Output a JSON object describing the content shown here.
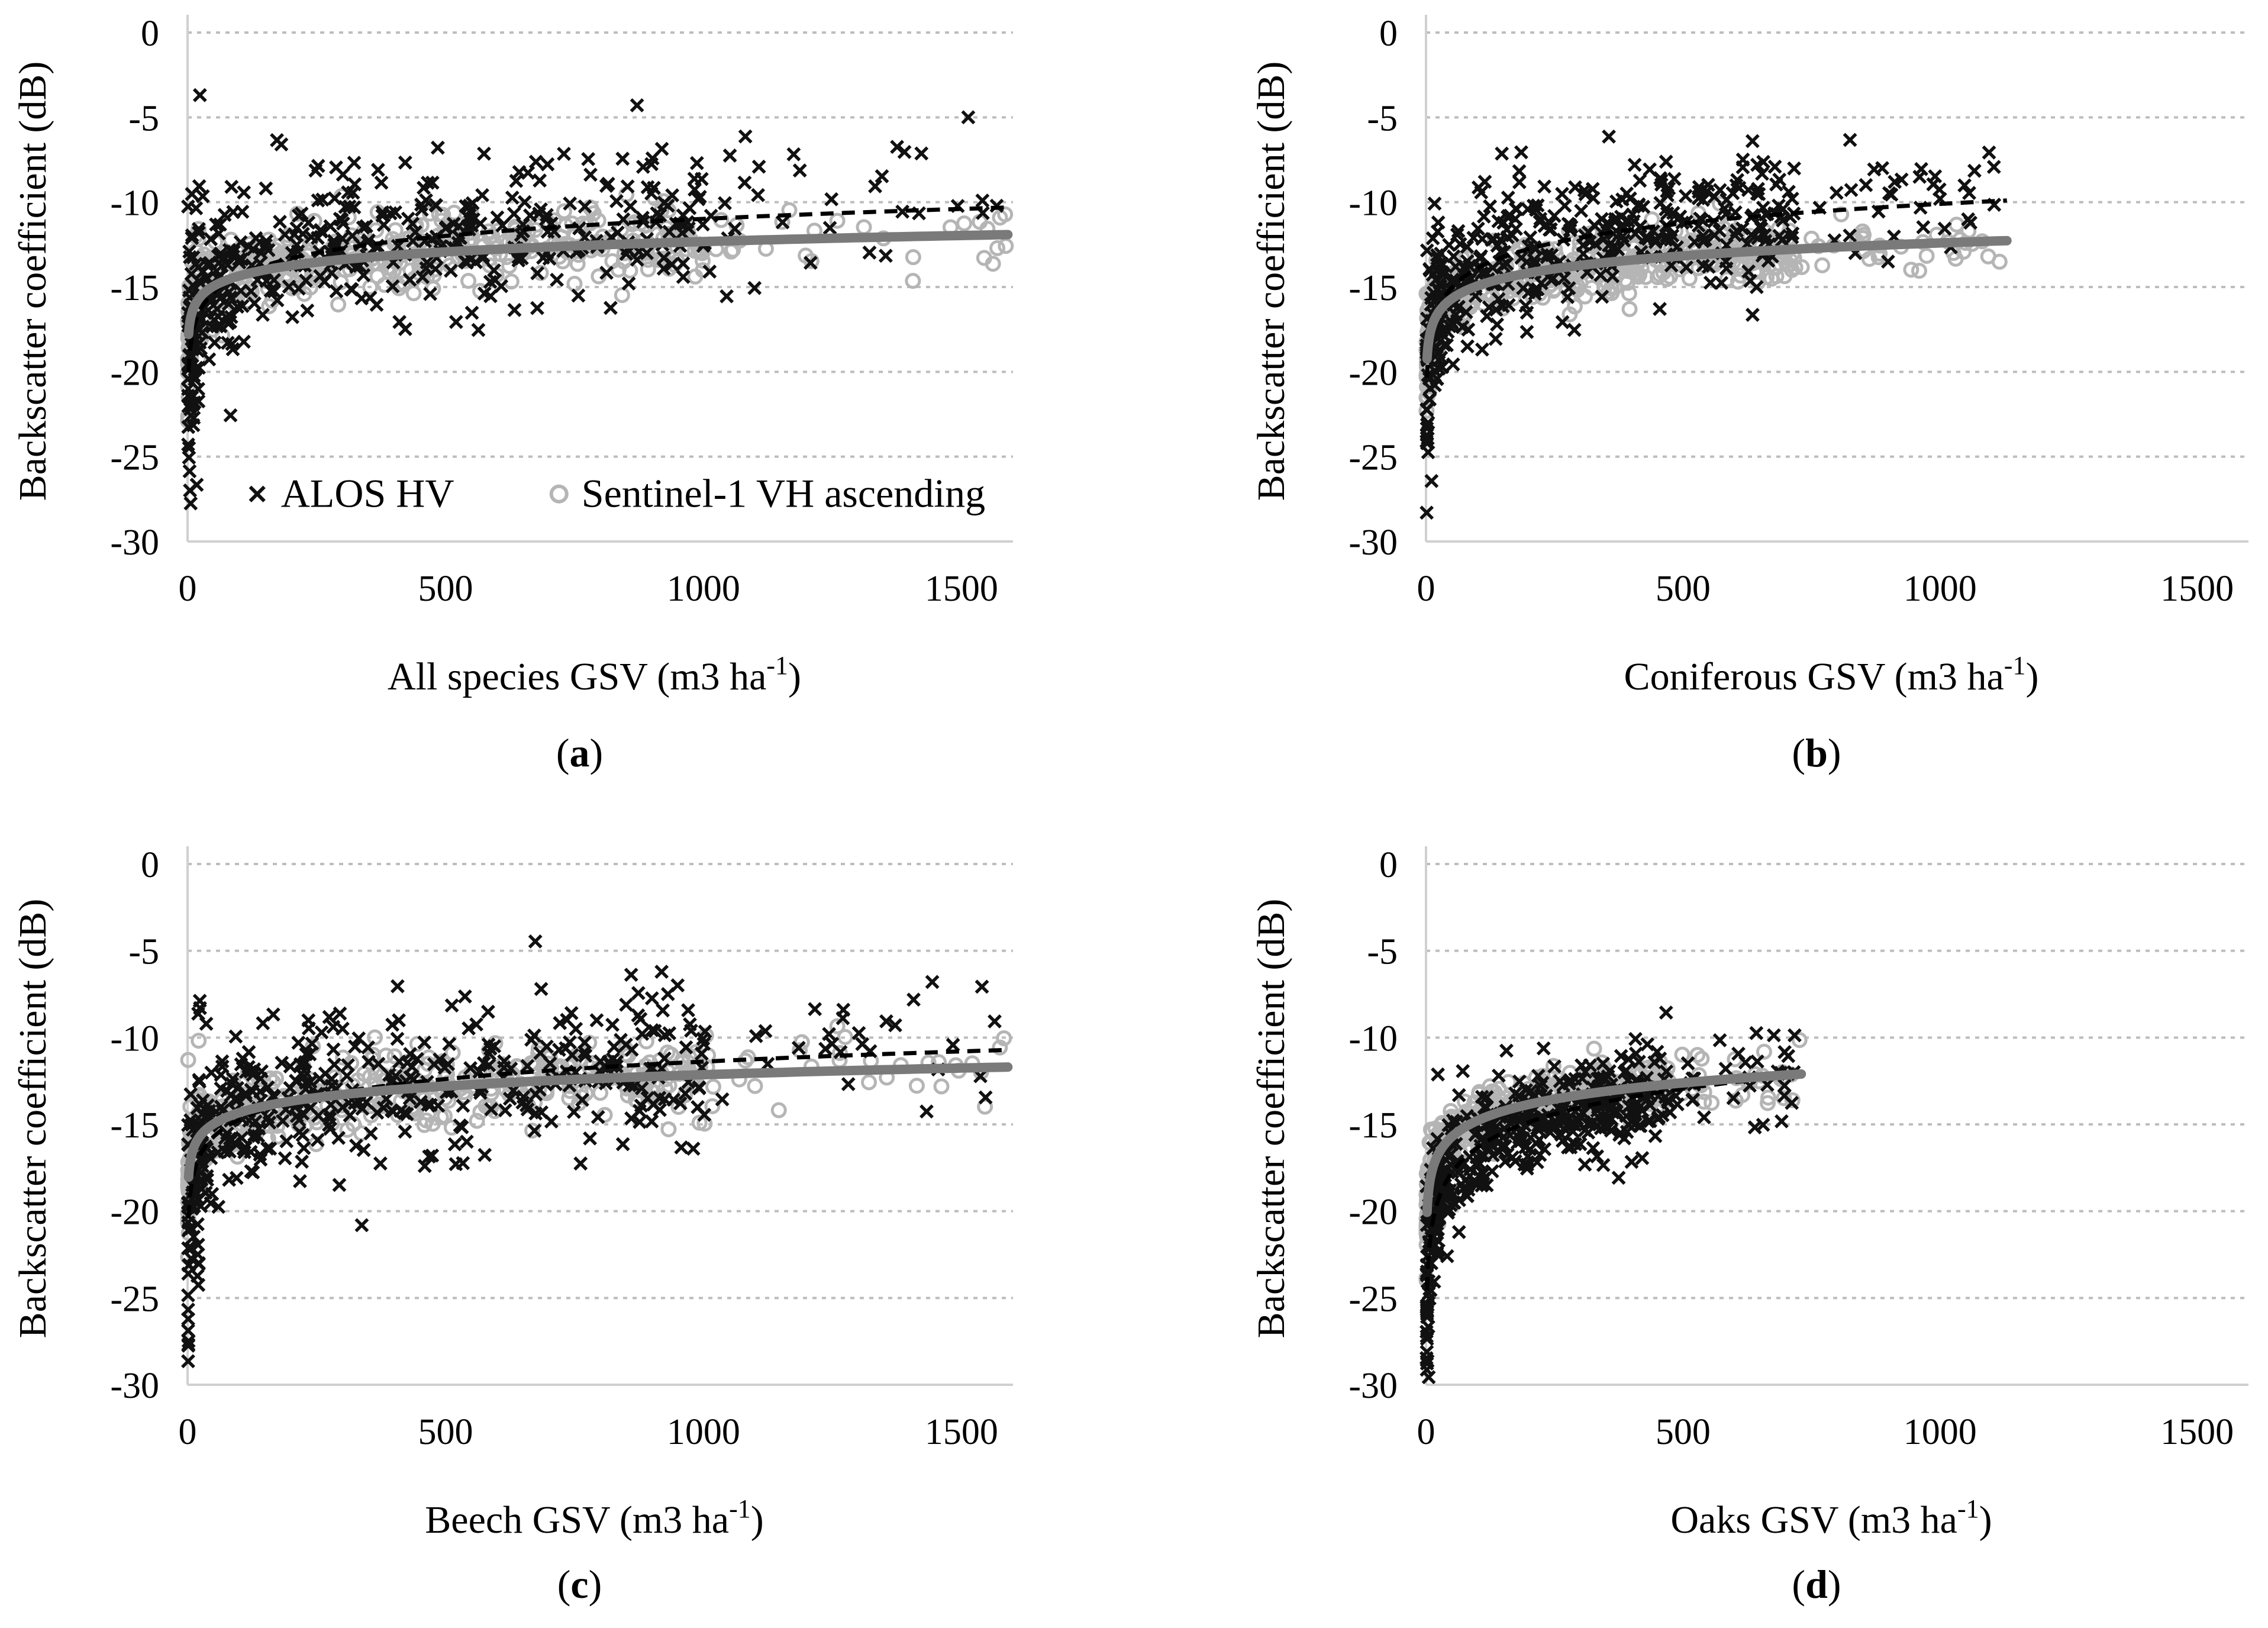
{
  "figure": {
    "legend": {
      "series_a": "ALOS HV",
      "series_b": "Sentinel-1 VH ascending"
    }
  },
  "chart_data": [
    {
      "type": "scatter",
      "panel_label": "a",
      "title": "",
      "xlabel": "All species GSV (m3 ha",
      "xlabel_sup": "-1",
      "xlabel_end": ")",
      "ylabel": "Backscatter coefficient (dB)",
      "xlim": [
        0,
        1600
      ],
      "ylim": [
        -30,
        0
      ],
      "xticks": [
        "0",
        "500",
        "1000",
        "1500"
      ],
      "yticks": [
        "0",
        "-5",
        "-10",
        "-15",
        "-20",
        "-25",
        "-30"
      ],
      "grid": true,
      "legend_position": "bottom-center",
      "x_max_data": 1590,
      "series": [
        {
          "name": "ALOS HV",
          "marker": "x",
          "color": "#111111",
          "fit": {
            "a": -21.0,
            "b": 1.45,
            "style": "dashed"
          },
          "noise": 2.3,
          "seed": 11
        },
        {
          "name": "Sentinel-1 VH ascending",
          "marker": "circle",
          "color": "#b5b5b5",
          "fit": {
            "a": -18.4,
            "b": 0.88,
            "style": "solid"
          },
          "noise": 1.1,
          "seed": 23
        }
      ]
    },
    {
      "type": "scatter",
      "panel_label": "b",
      "title": "",
      "xlabel": "Coniferous GSV (m3 ha",
      "xlabel_sup": "-1",
      "xlabel_end": ")",
      "ylabel": "Backscatter coefficient (dB)",
      "xlim": [
        0,
        1600
      ],
      "ylim": [
        -30,
        0
      ],
      "xticks": [
        "0",
        "500",
        "1000",
        "1500"
      ],
      "yticks": [
        "0",
        "-5",
        "-10",
        "-15",
        "-20",
        "-25",
        "-30"
      ],
      "grid": true,
      "legend_position": "none",
      "x_max_data": 1130,
      "series": [
        {
          "name": "ALOS HV",
          "marker": "x",
          "color": "#111111",
          "fit": {
            "a": -21.5,
            "b": 1.65,
            "style": "dashed"
          },
          "noise": 2.0,
          "seed": 37
        },
        {
          "name": "Sentinel-1 VH ascending",
          "marker": "circle",
          "color": "#b5b5b5",
          "fit": {
            "a": -20.0,
            "b": 1.1,
            "style": "solid"
          },
          "noise": 1.0,
          "seed": 41
        }
      ]
    },
    {
      "type": "scatter",
      "panel_label": "c",
      "title": "",
      "xlabel": "Beech GSV (m3 ha",
      "xlabel_sup": "-1",
      "xlabel_end": ")",
      "ylabel": "Backscatter coefficient (dB)",
      "xlim": [
        0,
        1600
      ],
      "ylim": [
        -30,
        0
      ],
      "xticks": [
        "0",
        "500",
        "1000",
        "1500"
      ],
      "yticks": [
        "0",
        "-5",
        "-10",
        "-15",
        "-20",
        "-25",
        "-30"
      ],
      "grid": true,
      "legend_position": "none",
      "x_max_data": 1590,
      "series": [
        {
          "name": "ALOS HV",
          "marker": "x",
          "color": "#111111",
          "fit": {
            "a": -21.4,
            "b": 1.45,
            "style": "dashed"
          },
          "noise": 2.3,
          "seed": 53
        },
        {
          "name": "Sentinel-1 VH ascending",
          "marker": "circle",
          "color": "#b5b5b5",
          "fit": {
            "a": -18.7,
            "b": 0.95,
            "style": "solid"
          },
          "noise": 1.1,
          "seed": 67
        }
      ]
    },
    {
      "type": "scatter",
      "panel_label": "d",
      "title": "",
      "xlabel": "Oaks GSV (m3 ha",
      "xlabel_sup": "-1",
      "xlabel_end": ")",
      "ylabel": "Backscatter coefficient (dB)",
      "xlim": [
        0,
        1600
      ],
      "ylim": [
        -30,
        0
      ],
      "xticks": [
        "0",
        "500",
        "1000",
        "1500"
      ],
      "yticks": [
        "0",
        "-5",
        "-10",
        "-15",
        "-20",
        "-25",
        "-30"
      ],
      "grid": true,
      "legend_position": "none",
      "x_max_data": 730,
      "series": [
        {
          "name": "ALOS HV",
          "marker": "x",
          "color": "#111111",
          "fit": {
            "a": -26.0,
            "b": 2.1,
            "style": "dashed"
          },
          "noise": 1.5,
          "seed": 71
        },
        {
          "name": "Sentinel-1 VH ascending",
          "marker": "circle",
          "color": "#b5b5b5",
          "fit": {
            "a": -21.0,
            "b": 1.35,
            "style": "solid"
          },
          "noise": 0.8,
          "seed": 89
        }
      ]
    }
  ]
}
